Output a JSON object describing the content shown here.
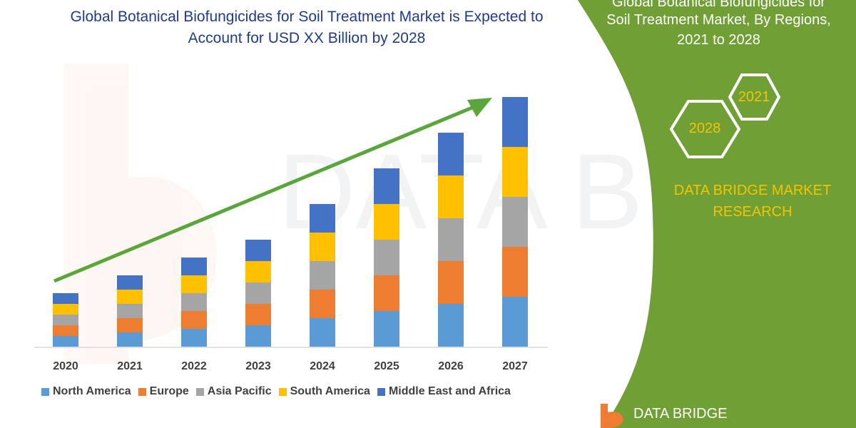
{
  "title": {
    "line1": "Global Botanical Biofungicides for Soil Treatment Market is Expected to",
    "line2": "Account for USD XX Billion by 2028"
  },
  "panel": {
    "line1": "Global Botanical Biofungicides for",
    "line2": "Soil Treatment Market, By Regions,",
    "line3": "2021 to 2028",
    "hex_left": "2028",
    "hex_right": "2021",
    "brand_line1": "DATA BRIDGE MARKET",
    "brand_line2": "RESEARCH",
    "logo_text": "DATA BRIDGE",
    "watermark_text": "DATA BRIDGE"
  },
  "colors": {
    "panel_green": "#6f9f35",
    "title_blue": "#1f3c88",
    "accent_yellow": "#f2c500",
    "arrow_green": "#5aa63a"
  },
  "chart_data": {
    "type": "bar",
    "stacked": true,
    "categories": [
      "2020",
      "2021",
      "2022",
      "2023",
      "2024",
      "2025",
      "2026",
      "2027"
    ],
    "series": [
      {
        "name": "North America",
        "color": "#5b9bd5",
        "values": [
          15,
          20,
          25,
          30,
          40,
          50,
          60,
          70
        ]
      },
      {
        "name": "Europe",
        "color": "#ed7d31",
        "values": [
          15,
          20,
          25,
          30,
          40,
          50,
          60,
          70
        ]
      },
      {
        "name": "Asia Pacific",
        "color": "#a5a5a5",
        "values": [
          15,
          20,
          25,
          30,
          40,
          50,
          60,
          70
        ]
      },
      {
        "name": "South America",
        "color": "#ffc000",
        "values": [
          15,
          20,
          25,
          30,
          40,
          50,
          60,
          70
        ]
      },
      {
        "name": "Middle East and Africa",
        "color": "#4472c4",
        "values": [
          15,
          20,
          25,
          30,
          40,
          50,
          60,
          70
        ]
      }
    ],
    "ylim": [
      0,
      352
    ],
    "grid": false,
    "legend": "bottom",
    "xlabel": "",
    "ylabel": ""
  }
}
